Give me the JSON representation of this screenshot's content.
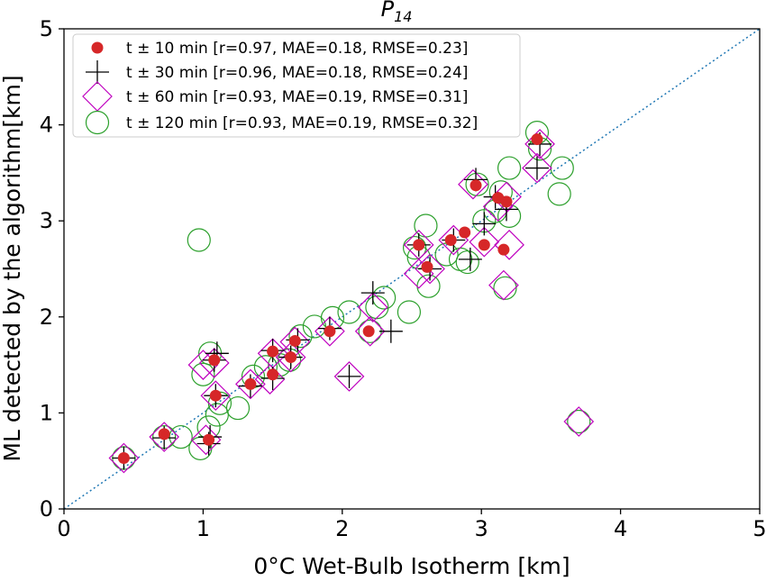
{
  "chart_data": {
    "type": "scatter",
    "title": "P",
    "title_subscript": "14",
    "xlabel": "0°C Wet-Bulb Isotherm [km]",
    "ylabel": "ML detected by the algorithm[km]",
    "xlim": [
      0,
      5
    ],
    "ylim": [
      0,
      5
    ],
    "x_ticks": [
      "0",
      "1",
      "2",
      "3",
      "4",
      "5"
    ],
    "y_ticks": [
      "0",
      "1",
      "2",
      "3",
      "4",
      "5"
    ],
    "grid": false,
    "legend_position": "top-left",
    "reference_line": {
      "style": "dotted",
      "color": "#1f77b4",
      "from": [
        0,
        0
      ],
      "to": [
        5,
        5
      ]
    },
    "colors": {
      "t10": "#d62728",
      "t30": "#000000",
      "t60": "#bf00bf",
      "t120": "#2ca02c"
    },
    "series": [
      {
        "name": "t ± 10 min [r=0.97, MAE=0.18, RMSE=0.23]",
        "marker": "circle-filled",
        "color": "#d62728",
        "points": [
          [
            0.43,
            0.53
          ],
          [
            0.72,
            0.78
          ],
          [
            1.04,
            0.72
          ],
          [
            1.09,
            1.18
          ],
          [
            1.08,
            1.55
          ],
          [
            1.34,
            1.3
          ],
          [
            1.5,
            1.4
          ],
          [
            1.5,
            1.64
          ],
          [
            1.63,
            1.58
          ],
          [
            1.66,
            1.75
          ],
          [
            1.91,
            1.85
          ],
          [
            2.19,
            1.85
          ],
          [
            2.55,
            2.75
          ],
          [
            2.61,
            2.52
          ],
          [
            2.78,
            2.8
          ],
          [
            2.88,
            2.88
          ],
          [
            2.96,
            3.37
          ],
          [
            3.02,
            2.75
          ],
          [
            3.16,
            2.7
          ],
          [
            3.12,
            3.24
          ],
          [
            3.18,
            3.2
          ],
          [
            3.4,
            3.85
          ]
        ]
      },
      {
        "name": "t ± 30 min [r=0.96, MAE=0.18, RMSE=0.24]",
        "marker": "plus",
        "color": "#000000",
        "points": [
          [
            0.43,
            0.53
          ],
          [
            0.72,
            0.74
          ],
          [
            1.04,
            0.68
          ],
          [
            1.05,
            0.75
          ],
          [
            1.09,
            1.18
          ],
          [
            1.08,
            1.55
          ],
          [
            1.1,
            1.62
          ],
          [
            1.34,
            1.28
          ],
          [
            1.5,
            1.36
          ],
          [
            1.5,
            1.65
          ],
          [
            1.63,
            1.58
          ],
          [
            1.68,
            1.76
          ],
          [
            1.91,
            1.88
          ],
          [
            2.05,
            1.38
          ],
          [
            2.22,
            2.25
          ],
          [
            2.35,
            1.85
          ],
          [
            2.55,
            2.75
          ],
          [
            2.63,
            2.5
          ],
          [
            2.8,
            2.8
          ],
          [
            2.92,
            2.6
          ],
          [
            2.96,
            3.43
          ],
          [
            3.02,
            2.97
          ],
          [
            3.1,
            3.25
          ],
          [
            3.18,
            3.12
          ],
          [
            3.4,
            3.55
          ],
          [
            3.42,
            3.8
          ]
        ]
      },
      {
        "name": "t ± 60 min [r=0.93, MAE=0.19, RMSE=0.31]",
        "marker": "diamond-open",
        "color": "#bf00bf",
        "points": [
          [
            0.43,
            0.53
          ],
          [
            0.72,
            0.75
          ],
          [
            1.02,
            0.72
          ],
          [
            1.0,
            1.5
          ],
          [
            1.08,
            1.52
          ],
          [
            1.09,
            1.18
          ],
          [
            1.34,
            1.3
          ],
          [
            1.48,
            1.35
          ],
          [
            1.5,
            1.62
          ],
          [
            1.63,
            1.58
          ],
          [
            1.66,
            1.74
          ],
          [
            1.91,
            1.85
          ],
          [
            2.05,
            1.38
          ],
          [
            2.2,
            1.85
          ],
          [
            2.22,
            2.1
          ],
          [
            2.55,
            2.75
          ],
          [
            2.55,
            2.45
          ],
          [
            2.63,
            2.5
          ],
          [
            2.8,
            2.8
          ],
          [
            2.94,
            3.38
          ],
          [
            3.02,
            2.78
          ],
          [
            3.12,
            3.15
          ],
          [
            3.18,
            3.25
          ],
          [
            3.16,
            2.33
          ],
          [
            3.2,
            2.75
          ],
          [
            3.42,
            3.8
          ],
          [
            3.4,
            3.55
          ],
          [
            3.7,
            0.91
          ]
        ]
      },
      {
        "name": "t ± 120 min [r=0.93, MAE=0.19, RMSE=0.32]",
        "marker": "circle-open",
        "color": "#2ca02c",
        "points": [
          [
            0.43,
            0.53
          ],
          [
            0.72,
            0.75
          ],
          [
            0.84,
            0.75
          ],
          [
            0.98,
            0.63
          ],
          [
            1.04,
            0.85
          ],
          [
            1.1,
            0.98
          ],
          [
            1.12,
            1.1
          ],
          [
            1.0,
            1.4
          ],
          [
            1.05,
            1.62
          ],
          [
            0.97,
            2.8
          ],
          [
            1.25,
            1.05
          ],
          [
            1.36,
            1.38
          ],
          [
            1.45,
            1.48
          ],
          [
            1.55,
            1.5
          ],
          [
            1.62,
            1.55
          ],
          [
            1.7,
            1.8
          ],
          [
            1.8,
            1.9
          ],
          [
            1.93,
            1.99
          ],
          [
            2.05,
            2.05
          ],
          [
            2.2,
            1.85
          ],
          [
            2.25,
            2.1
          ],
          [
            2.3,
            2.2
          ],
          [
            2.48,
            2.05
          ],
          [
            2.55,
            2.62
          ],
          [
            2.52,
            2.72
          ],
          [
            2.6,
            2.95
          ],
          [
            2.62,
            2.32
          ],
          [
            2.75,
            2.65
          ],
          [
            2.85,
            2.6
          ],
          [
            2.9,
            2.57
          ],
          [
            2.97,
            3.38
          ],
          [
            3.02,
            3.0
          ],
          [
            3.1,
            3.1
          ],
          [
            3.14,
            3.3
          ],
          [
            3.17,
            2.3
          ],
          [
            3.2,
            3.55
          ],
          [
            3.2,
            3.05
          ],
          [
            3.4,
            3.92
          ],
          [
            3.42,
            3.75
          ],
          [
            3.58,
            3.55
          ],
          [
            3.56,
            3.28
          ],
          [
            3.7,
            0.91
          ]
        ]
      }
    ]
  }
}
